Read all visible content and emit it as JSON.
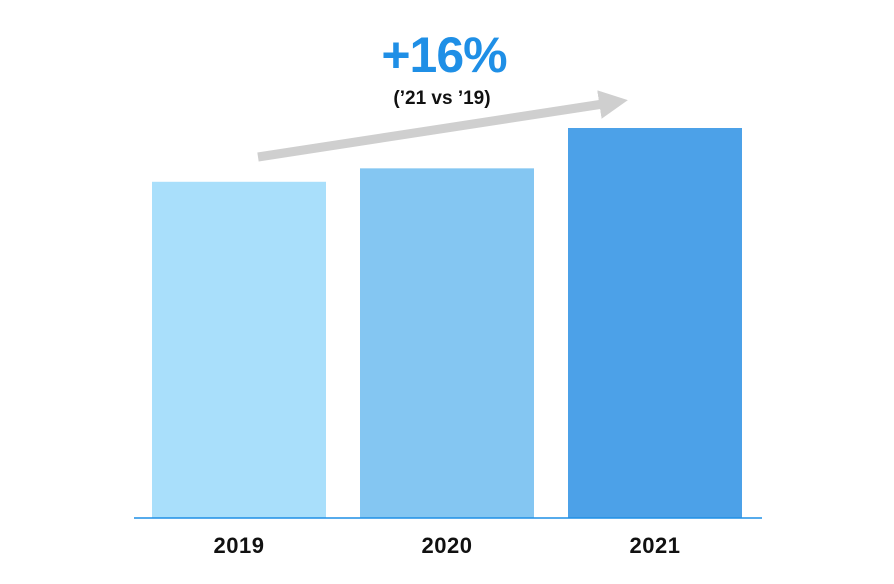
{
  "chart_data": {
    "type": "bar",
    "categories": [
      "2019",
      "2020",
      "2021"
    ],
    "values": [
      100,
      104,
      116
    ],
    "colors": {
      "bars": [
        "#a9dffb",
        "#84c6f2",
        "#4ca1e8"
      ],
      "headline": "#1f8fe6",
      "arrow": "#cfcfcf",
      "axis": "#1f8fe6"
    },
    "annotation": {
      "headline": "+16%",
      "subhead": "(’21 vs ’19)"
    },
    "title": "",
    "xlabel": "",
    "ylabel": "",
    "ylim": [
      0,
      116
    ],
    "grid": false,
    "legend": "none"
  }
}
